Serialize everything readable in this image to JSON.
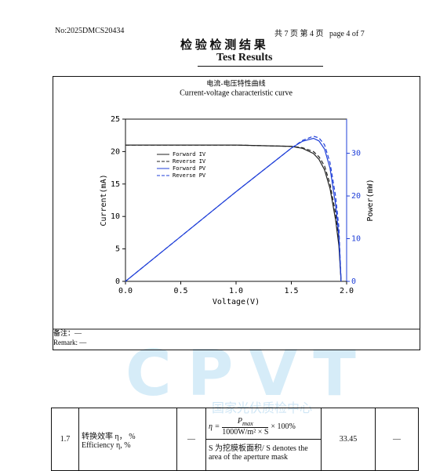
{
  "header": {
    "report_no": "No:2025DMCS20434",
    "page_info": "共 7 页 第 4 页   page 4 of 7",
    "title_cn": "检 验 检 测 结 果",
    "title_en": "Test Results"
  },
  "watermark": {
    "logo": "CPVT",
    "org": "国家光伏质检中心"
  },
  "chart_data": {
    "type": "line",
    "title": "电流-电压特性曲线",
    "subtitle": "Current-voltage characteristic curve",
    "x_label": "Voltage(V)",
    "y_label": "Current(mA)",
    "y2_label": "Power(mW)",
    "x": [
      0,
      0.5,
      1.0,
      1.5,
      1.6,
      1.7,
      1.75,
      1.8,
      1.85,
      1.9,
      1.93,
      1.95
    ],
    "series": [
      {
        "name": "Forward IV",
        "color": "#222222",
        "style": "solid",
        "values": [
          21,
          21,
          21,
          20.8,
          20.5,
          19.7,
          18.8,
          17.2,
          14.3,
          9.5,
          5.5,
          0
        ]
      },
      {
        "name": "Reverse IV",
        "color": "#222222",
        "style": "dashed",
        "values": [
          21,
          21,
          21,
          20.8,
          20.6,
          20,
          19.2,
          17.8,
          15,
          10.5,
          6.5,
          0
        ]
      },
      {
        "name": "Forward PV",
        "color": "#1f3fd8",
        "style": "solid",
        "axis": "y2",
        "values": [
          0,
          10.5,
          21,
          31.2,
          32.8,
          33.5,
          32.9,
          31,
          26.5,
          18,
          10.6,
          0
        ]
      },
      {
        "name": "Reverse PV",
        "color": "#1f3fd8",
        "style": "dashed",
        "axis": "y2",
        "values": [
          0,
          10.5,
          21,
          31.2,
          33,
          34,
          33.6,
          32,
          27.8,
          20,
          12.7,
          0
        ]
      }
    ],
    "xlim": [
      0,
      2.0
    ],
    "xticks": [
      {
        "value": 0,
        "label": "0.0"
      },
      0.5,
      {
        "value": 1,
        "label": "1.0"
      },
      1.5,
      {
        "value": 2,
        "label": "2.0"
      }
    ],
    "ylim": [
      0,
      25
    ],
    "yticks": [
      0,
      5,
      10,
      15,
      20,
      25
    ],
    "y2lim": [
      0,
      38
    ],
    "y2ticks": [
      0,
      10,
      20,
      30
    ],
    "y2color": "#1f3fd8",
    "legend": "upper left"
  },
  "notes": {
    "cn": "备注：—",
    "en": "Remark: —"
  },
  "table": {
    "rows": [
      [
        "1.7",
        "转换效率 η， %",
        "Efficiency η, %",
        "—",
        {
          "lhs": "η =",
          "numerator": "P",
          "numerator_sub": "max",
          "denominator": "1000W/m² × S",
          "tail": "× 100%"
        },
        "S 为挖膜板面积/ S denotes the area of the aperture mask",
        "33.45",
        "—"
      ]
    ]
  }
}
